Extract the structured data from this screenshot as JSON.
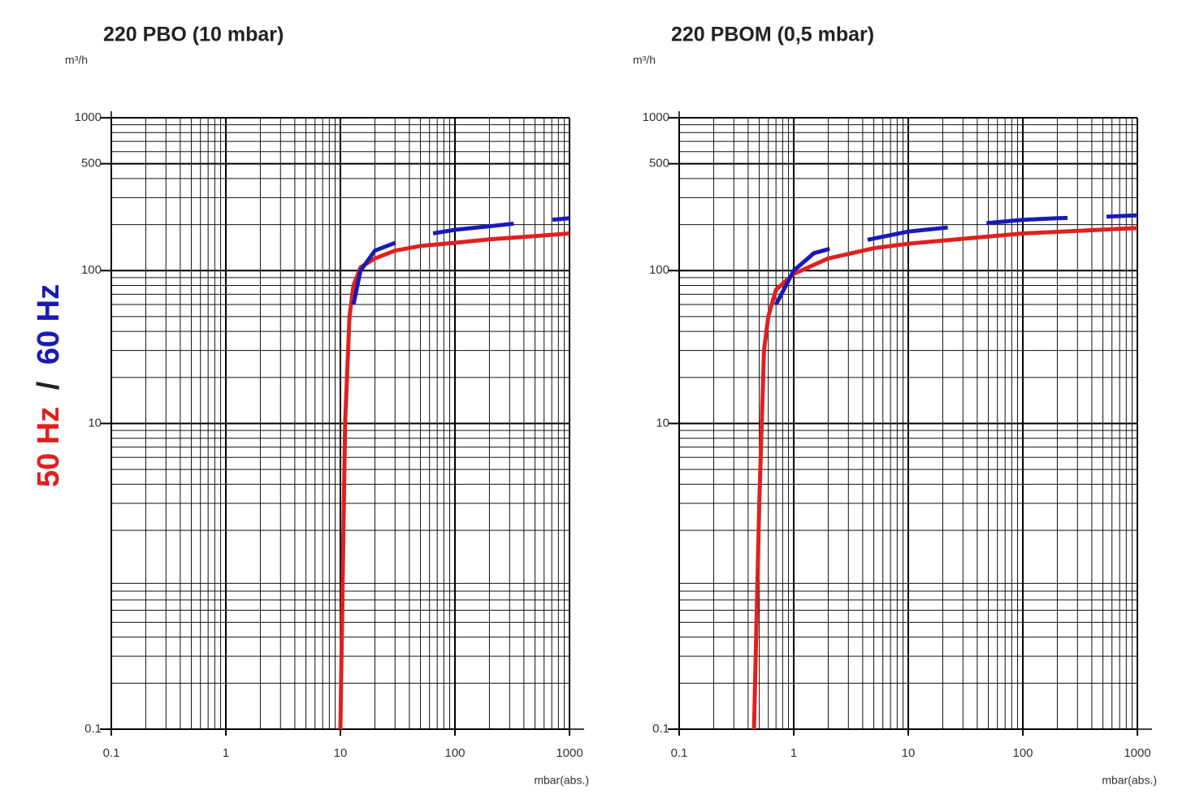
{
  "legend_separator": "/",
  "chart_data": [
    {
      "type": "line",
      "title": "220 PBO (10 mbar)",
      "y_label": "m³/h",
      "x_label": "mbar(abs.)",
      "xscale": "log",
      "yscale": "log",
      "grid": true,
      "xlim": [
        0.1,
        1000
      ],
      "ylim": [
        0.1,
        1000
      ],
      "xticks": [
        0.1,
        1,
        10,
        100,
        1000
      ],
      "yticks": [
        0.1,
        10,
        100,
        500,
        1000
      ],
      "series": [
        {
          "name": "50 Hz",
          "color": "#e02020",
          "style": "solid",
          "x": [
            10,
            11,
            12,
            13,
            15,
            20,
            30,
            50,
            100,
            200,
            500,
            1000
          ],
          "values": [
            0.1,
            10,
            50,
            80,
            105,
            120,
            135,
            145,
            152,
            160,
            168,
            175
          ]
        },
        {
          "name": "60 Hz",
          "color": "#1a1ab8",
          "style": "dashed",
          "x": [
            13,
            15,
            20,
            40,
            100,
            200,
            500,
            1000
          ],
          "values": [
            60,
            100,
            135,
            165,
            185,
            195,
            210,
            220
          ]
        }
      ]
    },
    {
      "type": "line",
      "title": "220 PBOM (0,5 mbar)",
      "y_label": "m³/h",
      "x_label": "mbar(abs.)",
      "xscale": "log",
      "yscale": "log",
      "grid": true,
      "xlim": [
        0.1,
        1000
      ],
      "ylim": [
        0.1,
        1000
      ],
      "xticks": [
        0.1,
        1,
        10,
        100,
        1000
      ],
      "yticks": [
        0.1,
        10,
        100,
        500,
        1000
      ],
      "series": [
        {
          "name": "50 Hz",
          "color": "#e02020",
          "style": "solid",
          "x": [
            0.45,
            0.5,
            0.55,
            0.6,
            0.7,
            1,
            2,
            5,
            10,
            100,
            1000
          ],
          "values": [
            0.1,
            3,
            30,
            50,
            75,
            95,
            120,
            140,
            150,
            175,
            190
          ]
        },
        {
          "name": "60 Hz",
          "color": "#1a1ab8",
          "style": "dashed",
          "x": [
            0.7,
            1,
            1.5,
            3,
            10,
            20,
            50,
            100,
            200,
            500,
            1000
          ],
          "values": [
            60,
            100,
            130,
            150,
            180,
            190,
            205,
            215,
            220,
            225,
            230
          ]
        }
      ]
    }
  ]
}
